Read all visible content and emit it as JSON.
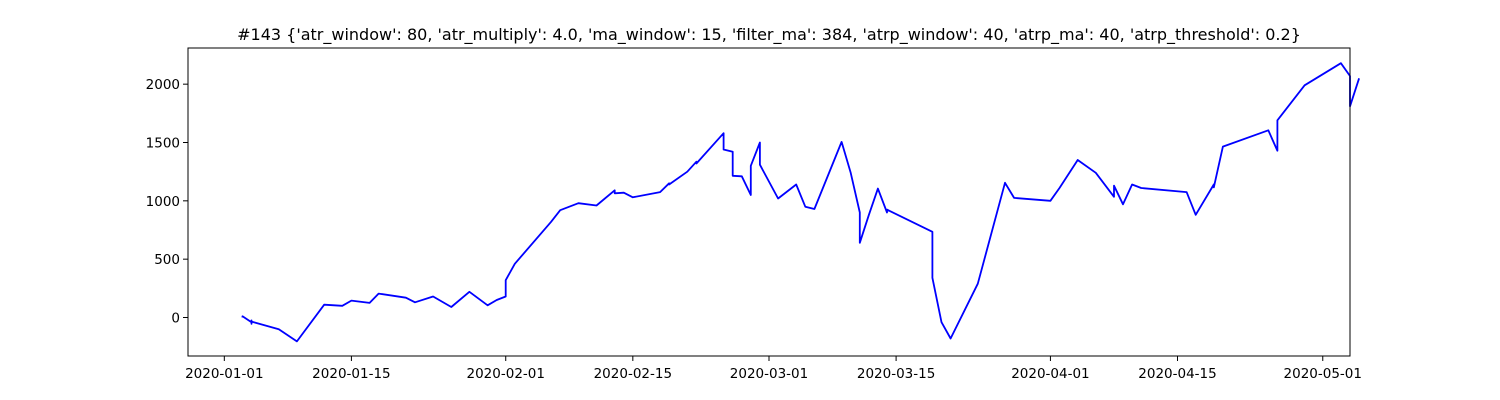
{
  "chart_data": {
    "type": "line",
    "title": "#143 {'atr_window': 80, 'atr_multiply': 4.0, 'ma_window': 15, 'filter_ma': 384, 'atrp_window': 40, 'atrp_ma': 40, 'atrp_threshold': 0.2}",
    "xlabel": "",
    "ylabel": "",
    "x_type": "date",
    "xlim": [
      "2019-12-28",
      "2020-05-04"
    ],
    "ylim": [
      -330,
      2310
    ],
    "x_ticks": [
      "2020-01-01",
      "2020-01-15",
      "2020-02-01",
      "2020-02-15",
      "2020-03-01",
      "2020-03-15",
      "2020-04-01",
      "2020-04-15",
      "2020-05-01"
    ],
    "y_ticks": [
      0,
      500,
      1000,
      1500,
      2000
    ],
    "grid": false,
    "legend": "none",
    "series": [
      {
        "color": "#0000ff",
        "points": [
          [
            "2020-01-03",
            0
          ],
          [
            "2020-01-03",
            10
          ],
          [
            "2020-01-04",
            -40
          ],
          [
            "2020-01-04",
            -25
          ],
          [
            "2020-01-04",
            -55
          ],
          [
            "2020-01-04",
            -35
          ],
          [
            "2020-01-07",
            -100
          ],
          [
            "2020-01-09",
            -205
          ],
          [
            "2020-01-12",
            110
          ],
          [
            "2020-01-14",
            100
          ],
          [
            "2020-01-15",
            145
          ],
          [
            "2020-01-17",
            125
          ],
          [
            "2020-01-18",
            205
          ],
          [
            "2020-01-21",
            170
          ],
          [
            "2020-01-22",
            130
          ],
          [
            "2020-01-24",
            180
          ],
          [
            "2020-01-26",
            90
          ],
          [
            "2020-01-28",
            220
          ],
          [
            "2020-01-30",
            105
          ],
          [
            "2020-01-31",
            150
          ],
          [
            "2020-02-01",
            180
          ],
          [
            "2020-02-01",
            320
          ],
          [
            "2020-02-02",
            460
          ],
          [
            "2020-02-06",
            820
          ],
          [
            "2020-02-07",
            920
          ],
          [
            "2020-02-09",
            980
          ],
          [
            "2020-02-11",
            960
          ],
          [
            "2020-02-13",
            1090
          ],
          [
            "2020-02-13",
            1065
          ],
          [
            "2020-02-14",
            1070
          ],
          [
            "2020-02-15",
            1030
          ],
          [
            "2020-02-18",
            1075
          ],
          [
            "2020-02-19",
            1150
          ],
          [
            "2020-02-19",
            1140
          ],
          [
            "2020-02-21",
            1250
          ],
          [
            "2020-02-22",
            1335
          ],
          [
            "2020-02-22",
            1320
          ],
          [
            "2020-02-25",
            1580
          ],
          [
            "2020-02-25",
            1440
          ],
          [
            "2020-02-26",
            1420
          ],
          [
            "2020-02-26",
            1215
          ],
          [
            "2020-02-27",
            1210
          ],
          [
            "2020-02-28",
            1050
          ],
          [
            "2020-02-28",
            1300
          ],
          [
            "2020-02-29",
            1500
          ],
          [
            "2020-02-29",
            1310
          ],
          [
            "2020-03-02",
            1020
          ],
          [
            "2020-03-04",
            1140
          ],
          [
            "2020-03-05",
            950
          ],
          [
            "2020-03-06",
            930
          ],
          [
            "2020-03-09",
            1505
          ],
          [
            "2020-03-10",
            1240
          ],
          [
            "2020-03-11",
            900
          ],
          [
            "2020-03-11",
            640
          ],
          [
            "2020-03-12",
            880
          ],
          [
            "2020-03-13",
            1105
          ],
          [
            "2020-03-14",
            900
          ],
          [
            "2020-03-14",
            925
          ],
          [
            "2020-03-19",
            735
          ],
          [
            "2020-03-19",
            340
          ],
          [
            "2020-03-20",
            -40
          ],
          [
            "2020-03-21",
            -180
          ],
          [
            "2020-03-24",
            290
          ],
          [
            "2020-03-27",
            1155
          ],
          [
            "2020-03-28",
            1025
          ],
          [
            "2020-04-01",
            1000
          ],
          [
            "2020-04-02",
            1110
          ],
          [
            "2020-04-04",
            1350
          ],
          [
            "2020-04-06",
            1240
          ],
          [
            "2020-04-08",
            1035
          ],
          [
            "2020-04-08",
            1130
          ],
          [
            "2020-04-09",
            970
          ],
          [
            "2020-04-10",
            1140
          ],
          [
            "2020-04-11",
            1110
          ],
          [
            "2020-04-16",
            1075
          ],
          [
            "2020-04-17",
            880
          ],
          [
            "2020-04-19",
            1140
          ],
          [
            "2020-04-19",
            1115
          ],
          [
            "2020-04-20",
            1465
          ],
          [
            "2020-04-25",
            1605
          ],
          [
            "2020-04-26",
            1430
          ],
          [
            "2020-04-26",
            1690
          ],
          [
            "2020-04-29",
            1990
          ],
          [
            "2020-05-03",
            2180
          ],
          [
            "2020-05-04",
            2070
          ],
          [
            "2020-05-04",
            1810
          ],
          [
            "2020-05-05",
            2050
          ]
        ]
      }
    ]
  }
}
